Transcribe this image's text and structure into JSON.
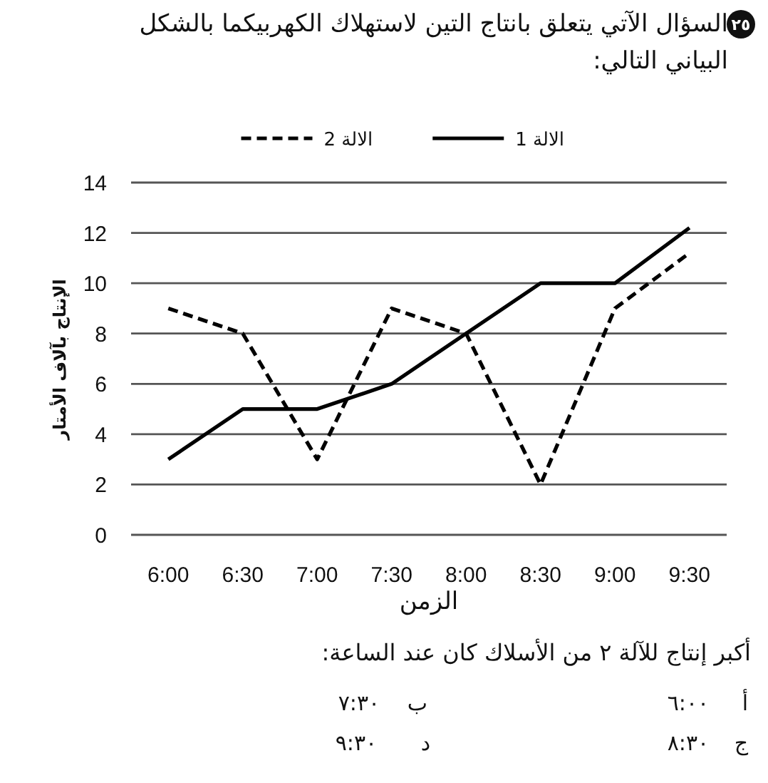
{
  "chart_data": {
    "type": "line",
    "title": "السؤال الآتي يتعلق بانتاج التين لاستهلاك الكهربيكما بالشكل البياني التالي:",
    "xlabel": "الزمن",
    "ylabel": "الإنتاج بآلاف الأمتار",
    "categories": [
      "6:00",
      "6:30",
      "7:00",
      "7:30",
      "8:00",
      "8:30",
      "9:00",
      "9:30"
    ],
    "series": [
      {
        "name": "الالة 1",
        "color": "#000000",
        "line_style": "solid",
        "values": [
          3,
          5,
          5,
          6,
          8,
          10,
          10,
          12.2
        ]
      },
      {
        "name": "الالة 2",
        "color": "#000000",
        "line_style": "dashed",
        "values": [
          9,
          8,
          3,
          9,
          8,
          2,
          9,
          11.2
        ]
      }
    ],
    "ylim": [
      0,
      14
    ],
    "yticks": [
      0,
      2,
      4,
      6,
      8,
      10,
      12,
      14
    ],
    "grid": "y",
    "legend": "top",
    "annotations": [
      "٢٥",
      "أكبر إنتاج للآلة ٢ من الأسلاك كان عند الساعة:",
      "أ",
      "٦:٠٠",
      "ب",
      "٧:٣٠",
      "ج",
      "٨:٣٠",
      "د",
      "٩:٣٠"
    ]
  }
}
